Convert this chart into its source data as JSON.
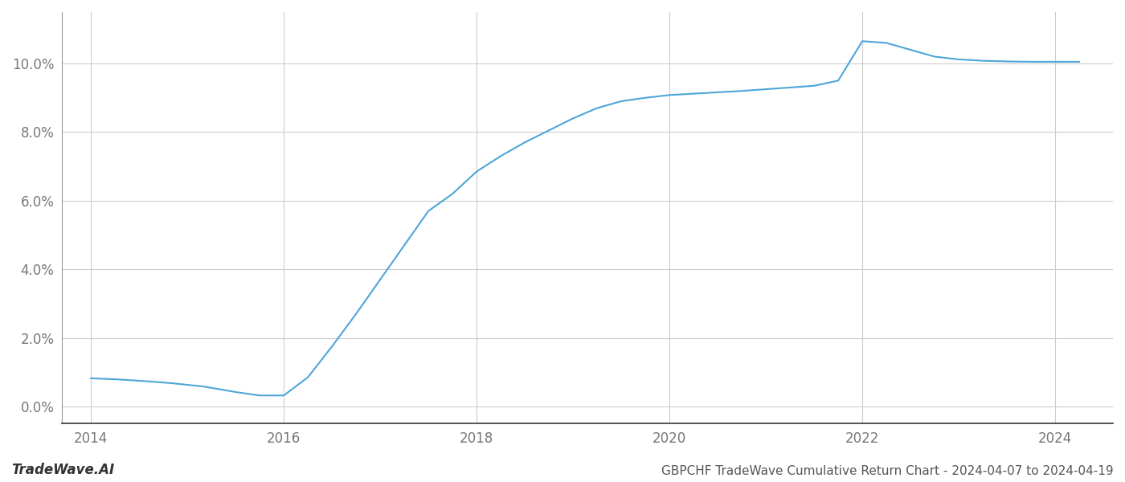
{
  "x": [
    2014.0,
    2014.27,
    2014.55,
    2014.83,
    2015.0,
    2015.17,
    2015.5,
    2015.75,
    2016.0,
    2016.25,
    2016.5,
    2016.75,
    2017.0,
    2017.25,
    2017.5,
    2017.75,
    2018.0,
    2018.25,
    2018.5,
    2018.75,
    2019.0,
    2019.25,
    2019.5,
    2019.75,
    2020.0,
    2020.25,
    2020.5,
    2020.75,
    2021.0,
    2021.25,
    2021.5,
    2021.75,
    2022.0,
    2022.25,
    2022.5,
    2022.75,
    2023.0,
    2023.25,
    2023.5,
    2023.75,
    2024.0,
    2024.25
  ],
  "y": [
    0.0082,
    0.0079,
    0.0074,
    0.0068,
    0.0063,
    0.0058,
    0.0042,
    0.0032,
    0.0032,
    0.0085,
    0.0175,
    0.027,
    0.037,
    0.047,
    0.057,
    0.062,
    0.0685,
    0.073,
    0.077,
    0.0805,
    0.084,
    0.087,
    0.089,
    0.09,
    0.0908,
    0.0912,
    0.0916,
    0.092,
    0.0925,
    0.093,
    0.0935,
    0.095,
    0.1065,
    0.106,
    0.104,
    0.102,
    0.1012,
    0.1008,
    0.1006,
    0.1005,
    0.1005,
    0.1005
  ],
  "line_color": "#4da6d8",
  "line_width": 1.5,
  "title": "GBPCHF TradeWave Cumulative Return Chart - 2024-04-07 to 2024-04-19",
  "watermark": "TradeWave.AI",
  "xlim": [
    2013.7,
    2024.6
  ],
  "ylim": [
    -0.005,
    0.115
  ],
  "yticks": [
    0.0,
    0.02,
    0.04,
    0.06,
    0.08,
    0.1
  ],
  "xticks": [
    2014,
    2016,
    2018,
    2020,
    2022,
    2024
  ],
  "background_color": "#ffffff",
  "grid_color": "#cccccc",
  "title_fontsize": 11,
  "tick_fontsize": 12,
  "watermark_fontsize": 12,
  "spine_color": "#999999",
  "tick_color": "#777777"
}
